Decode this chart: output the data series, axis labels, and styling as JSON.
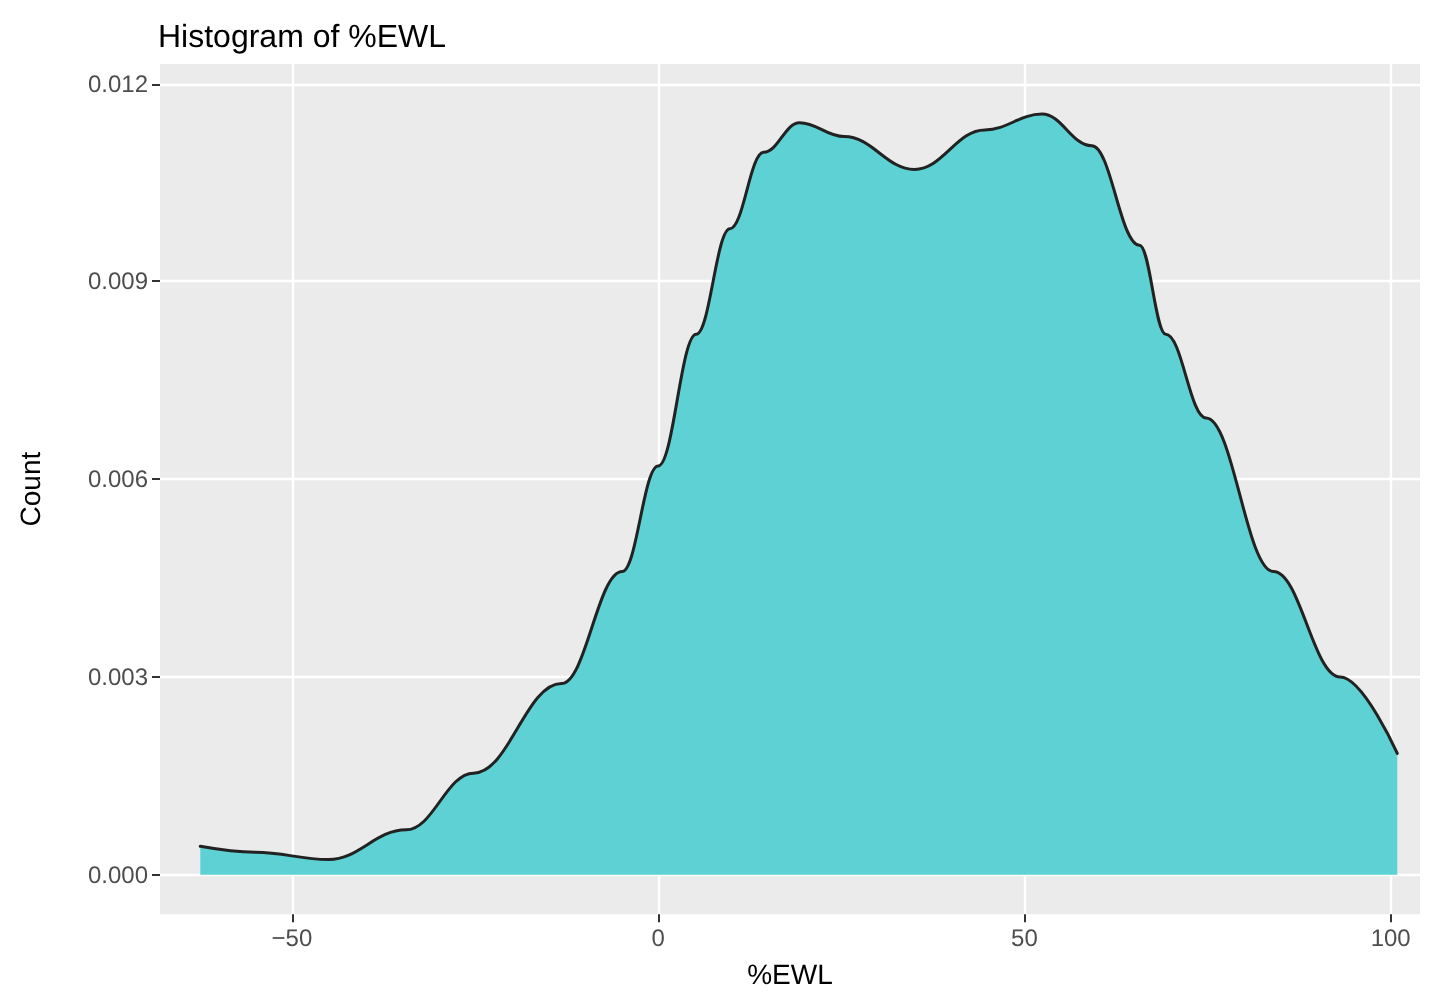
{
  "chart_data": {
    "type": "area",
    "title": "Histogram of %EWL",
    "xlabel": "%EWL",
    "ylabel": "Count",
    "series": [
      {
        "color": "#5ed1d4",
        "x": [
          -62.5,
          -55,
          -45,
          -34.4,
          -25.2,
          -13.2,
          -4.9,
          0,
          5.2,
          9.8,
          14.4,
          19.3,
          25.4,
          35,
          44.6,
          52.4,
          59.2,
          65.7,
          69.3,
          74.8,
          84,
          93.1,
          100.9
        ],
        "values": [
          0.00043,
          0.00034,
          0.00023,
          0.00068,
          0.00154,
          0.0029,
          0.0046,
          0.0062,
          0.0082,
          0.0098,
          0.01096,
          0.01141,
          0.0112,
          0.0107,
          0.0113,
          0.01154,
          0.01106,
          0.00955,
          0.0082,
          0.00693,
          0.0046,
          0.003,
          0.00184
        ]
      }
    ],
    "xlim": [
      -68,
      104
    ],
    "ylim": [
      -0.0006,
      0.0123
    ],
    "xticks": [
      -50,
      0,
      50,
      100
    ],
    "yticks": [
      {
        "value": 0,
        "label": "0.000"
      },
      {
        "value": 0.003,
        "label": "0.003"
      },
      {
        "value": 0.006,
        "label": "0.006"
      },
      {
        "value": 0.009,
        "label": "0.009"
      },
      {
        "value": 0.012,
        "label": "0.012"
      }
    ],
    "grid": true,
    "line_style": "solid"
  }
}
